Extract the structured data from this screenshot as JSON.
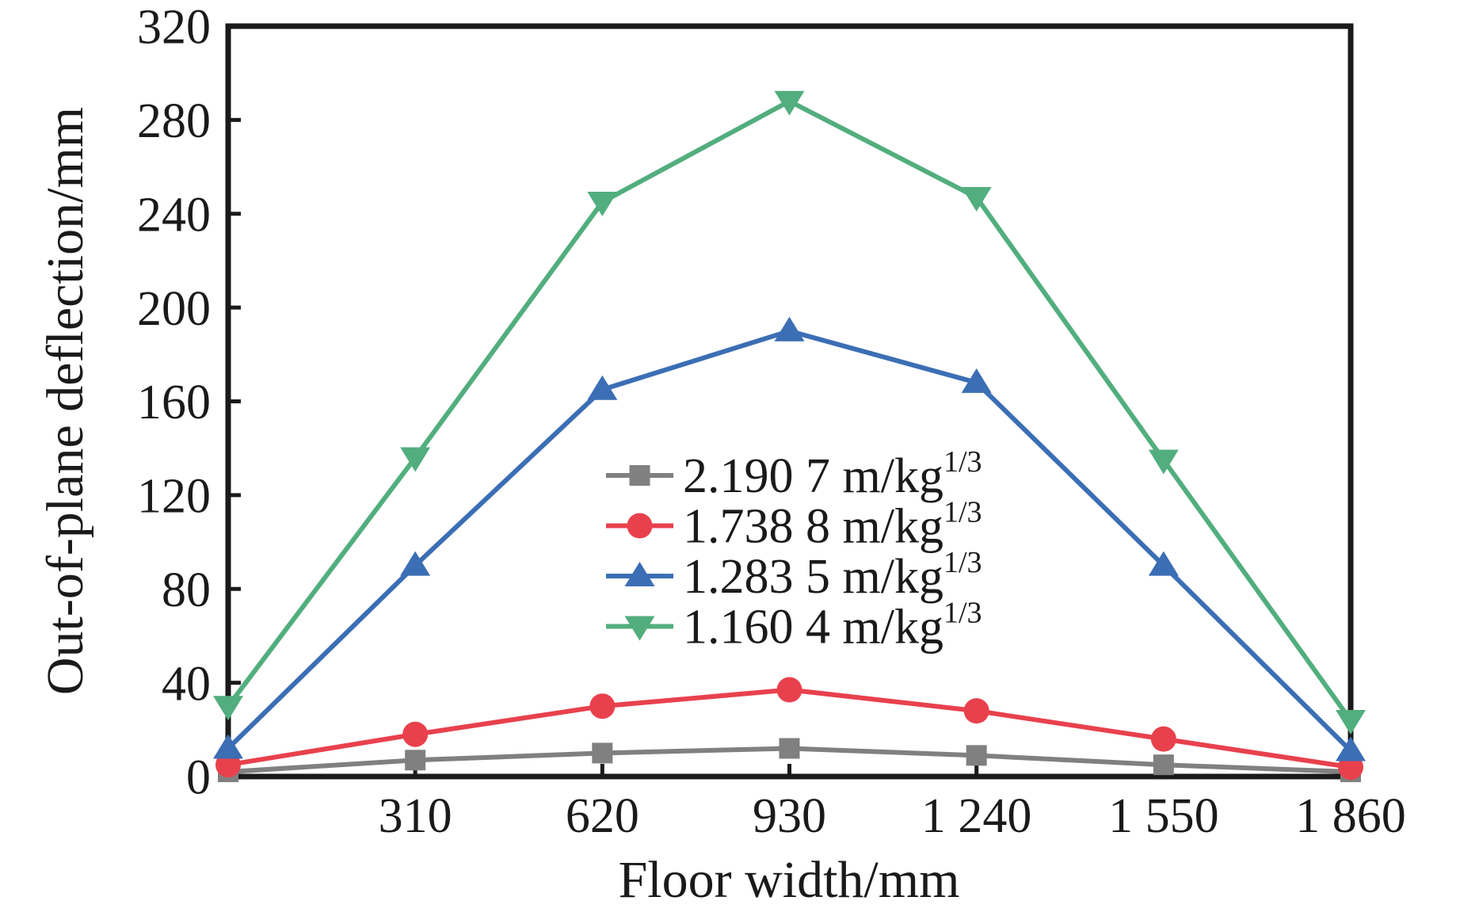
{
  "chart_data": {
    "type": "line",
    "title": "",
    "xlabel": "Floor width/mm",
    "ylabel": "Out-of-plane deflection/mm",
    "xlim": [
      0,
      1860
    ],
    "ylim": [
      0,
      320
    ],
    "grid": false,
    "legend_position": "center-inside",
    "x": [
      0,
      310,
      620,
      930,
      1240,
      1550,
      1860
    ],
    "x_tick_values": [
      310,
      620,
      930,
      1240,
      1550,
      1860
    ],
    "x_tick_labels": [
      "310",
      "620",
      "930",
      "1 240",
      "1 550",
      "1 860"
    ],
    "y_tick_values": [
      0,
      40,
      80,
      120,
      160,
      200,
      240,
      280,
      320
    ],
    "y_tick_labels": [
      "0",
      "40",
      "80",
      "120",
      "160",
      "200",
      "240",
      "280",
      "320"
    ],
    "series": [
      {
        "name": "2.190 7 m/kg",
        "name_superscript": "1/3",
        "marker": "square",
        "color": "#808080",
        "values": [
          2,
          7,
          10,
          12,
          9,
          5,
          2
        ]
      },
      {
        "name": "1.738 8 m/kg",
        "name_superscript": "1/3",
        "marker": "circle",
        "color": "#e8414d",
        "values": [
          5,
          18,
          30,
          37,
          28,
          16,
          4
        ]
      },
      {
        "name": "1.283 5 m/kg",
        "name_superscript": "1/3",
        "marker": "triangle-up",
        "color": "#3b6eb4",
        "values": [
          12,
          90,
          165,
          190,
          168,
          90,
          11
        ]
      },
      {
        "name": "1.160 4 m/kg",
        "name_superscript": "1/3",
        "marker": "triangle-down",
        "color": "#52ae7e",
        "values": [
          30,
          136,
          245,
          288,
          247,
          135,
          24
        ]
      }
    ],
    "axis_color": "#1a1a1a"
  }
}
